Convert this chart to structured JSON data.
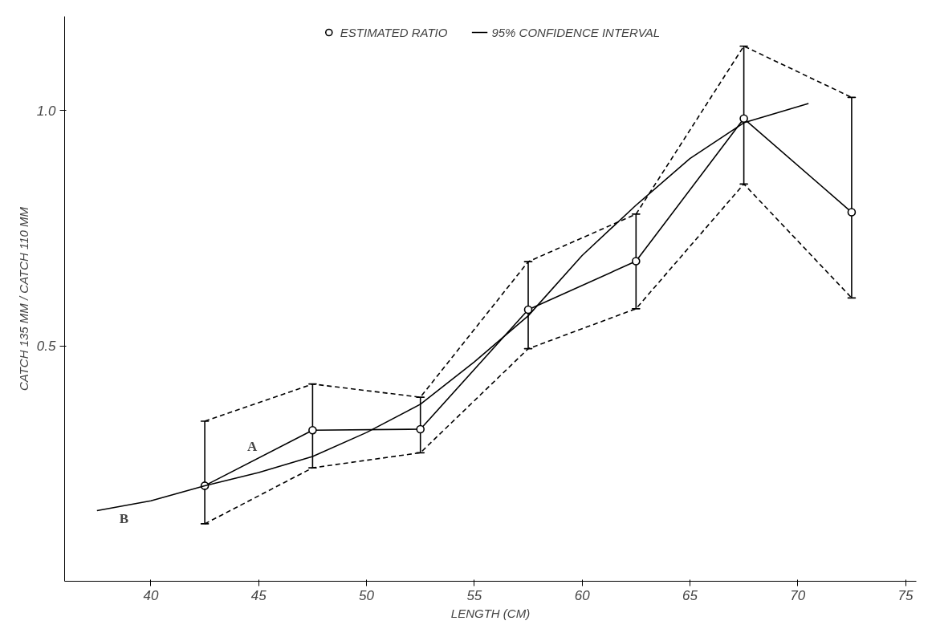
{
  "chart_data": {
    "type": "line",
    "xlabel": "LENGTH (CM)",
    "ylabel": "CATCH 135 MM / CATCH 110 MM",
    "xlim": [
      36,
      75.5
    ],
    "ylim": [
      0,
      1.2
    ],
    "xticks": [
      40,
      45,
      50,
      55,
      60,
      65,
      70,
      75
    ],
    "yticks": [
      0.5,
      {
        "value": 1,
        "label": "1.0"
      }
    ],
    "grid": false,
    "legend": "top",
    "annotations": [
      "95% CONFIDENCE INTERVAL",
      "A",
      "B"
    ],
    "series": [
      {
        "name": "ESTIMATED RATIO",
        "color": "#000000",
        "marker": "circle",
        "line_style": "solid",
        "x": [
          42.5,
          47.5,
          52.5,
          57.5,
          62.5,
          67.5,
          72.5
        ],
        "values": [
          0.203,
          0.321,
          0.323,
          0.577,
          0.68,
          0.983,
          0.784
        ],
        "errors": [
          [
            0.122,
            0.34
          ],
          [
            0.241,
            0.419
          ],
          [
            0.273,
            0.391
          ],
          [
            0.494,
            0.679
          ],
          [
            0.579,
            0.78
          ],
          [
            0.844,
            1.137
          ],
          [
            0.602,
            1.028
          ]
        ]
      },
      {
        "color": "#000000",
        "marker": "none",
        "line_style": "dashed",
        "x": [
          42.5,
          47.5,
          52.5,
          57.5,
          62.5,
          67.5,
          72.5
        ],
        "values": [
          0.34,
          0.419,
          0.391,
          0.679,
          0.78,
          1.137,
          1.028
        ]
      },
      {
        "color": "#000000",
        "marker": "none",
        "line_style": "dashed",
        "x": [
          42.5,
          47.5,
          52.5,
          57.5,
          62.5,
          67.5,
          72.5
        ],
        "values": [
          0.122,
          0.241,
          0.273,
          0.494,
          0.579,
          0.844,
          0.602
        ]
      },
      {
        "color": "#000000",
        "marker": "none",
        "line_style": "solid",
        "x": [
          37.5,
          40,
          42.5,
          45,
          47.5,
          50,
          52.5,
          55,
          57.5,
          60,
          62.5,
          65,
          67.5,
          70.5
        ],
        "values": [
          0.15,
          0.171,
          0.203,
          0.231,
          0.265,
          0.316,
          0.376,
          0.466,
          0.564,
          0.692,
          0.799,
          0.898,
          0.974,
          1.015
        ]
      }
    ]
  }
}
